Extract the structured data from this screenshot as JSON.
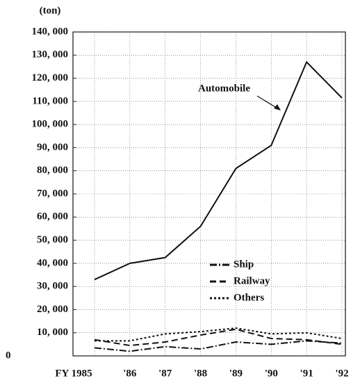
{
  "chart_data": {
    "type": "line",
    "y_axis_label": "(ton)",
    "categories": [
      "FY 1985",
      "'86",
      "'87",
      "'88",
      "'89",
      "'90",
      "'91",
      "'92"
    ],
    "series": [
      {
        "name": "Automobile",
        "color": "#111111",
        "line_style": "solid",
        "values": [
          33000,
          40000,
          42500,
          56000,
          81000,
          91000,
          127000,
          111500
        ]
      },
      {
        "name": "Ship",
        "color": "#111111",
        "line_style": "dashdot",
        "values": [
          3500,
          2000,
          4000,
          3000,
          6000,
          5000,
          6500,
          5500
        ]
      },
      {
        "name": "Railway",
        "color": "#111111",
        "line_style": "dashed",
        "values": [
          7000,
          4500,
          6000,
          9000,
          11500,
          7500,
          7000,
          5000
        ]
      },
      {
        "name": "Others",
        "color": "#111111",
        "line_style": "dotted",
        "values": [
          6500,
          6500,
          9500,
          10500,
          12000,
          9500,
          10000,
          7500
        ]
      }
    ],
    "ylim": [
      0,
      140000
    ],
    "yticks": [
      0,
      {
        "value": 10000,
        "label": "10, 000"
      },
      {
        "value": 20000,
        "label": "20, 000"
      },
      {
        "value": 30000,
        "label": "30, 000"
      },
      {
        "value": 40000,
        "label": "40, 000"
      },
      {
        "value": 50000,
        "label": "50, 000"
      },
      {
        "value": 60000,
        "label": "60, 000"
      },
      {
        "value": 70000,
        "label": "70, 000"
      },
      {
        "value": 80000,
        "label": "80, 000"
      },
      {
        "value": 90000,
        "label": "90, 000"
      },
      {
        "value": 100000,
        "label": "100, 000"
      },
      {
        "value": 110000,
        "label": "110, 000"
      },
      {
        "value": 120000,
        "label": "120, 000"
      },
      {
        "value": 130000,
        "label": "130, 000"
      },
      {
        "value": 140000,
        "label": "140, 000"
      }
    ],
    "grid": true
  }
}
